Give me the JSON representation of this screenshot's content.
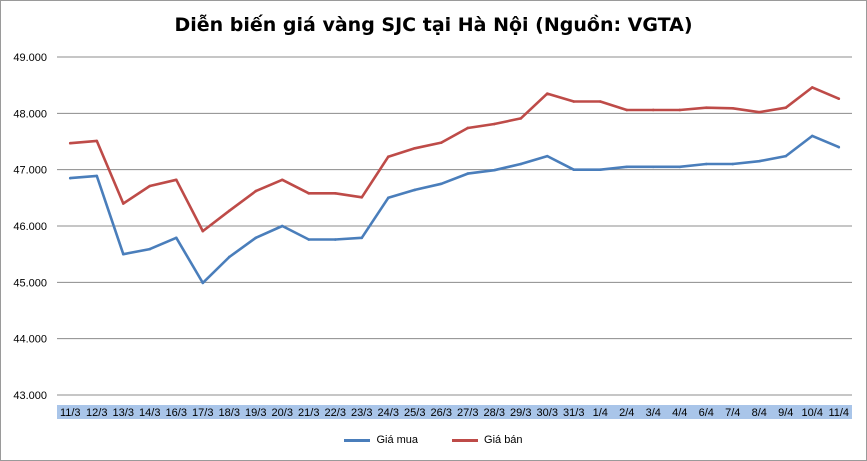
{
  "chart_data": {
    "type": "line",
    "title": "Diễn biến giá vàng SJC tại Hà Nội (Nguồn: VGTA)",
    "xlabel": "",
    "ylabel": "",
    "ylim": [
      43000,
      49000
    ],
    "yticks": [
      "43.000",
      "44.000",
      "45.000",
      "46.000",
      "47.000",
      "48.000",
      "49.000"
    ],
    "ytick_values": [
      43000,
      44000,
      45000,
      46000,
      47000,
      48000,
      49000
    ],
    "grid": true,
    "legend_position": "bottom",
    "categories": [
      "11/3",
      "12/3",
      "13/3",
      "14/3",
      "16/3",
      "17/3",
      "18/3",
      "19/3",
      "20/3",
      "21/3",
      "22/3",
      "23/3",
      "24/3",
      "25/3",
      "26/3",
      "27/3",
      "28/3",
      "29/3",
      "30/3",
      "31/3",
      "1/4",
      "2/4",
      "3/4",
      "4/4",
      "6/4",
      "7/4",
      "8/4",
      "9/4",
      "10/4",
      "11/4"
    ],
    "series": [
      {
        "name": "Giá mua",
        "color": "#4a7ebb",
        "values": [
          46850,
          46890,
          45500,
          45590,
          45790,
          44990,
          45450,
          45790,
          46000,
          45760,
          45760,
          45790,
          46500,
          46640,
          46750,
          46930,
          46990,
          47100,
          47240,
          47000,
          47000,
          47050,
          47050,
          47050,
          47100,
          47100,
          47150,
          47240,
          47600,
          47400
        ]
      },
      {
        "name": "Giá bán",
        "color": "#be4b48",
        "values": [
          47470,
          47510,
          46400,
          46710,
          46820,
          45910,
          46270,
          46620,
          46820,
          46580,
          46580,
          46510,
          47230,
          47380,
          47480,
          47740,
          47810,
          47910,
          48350,
          48210,
          48210,
          48060,
          48060,
          48060,
          48100,
          48090,
          48020,
          48100,
          48460,
          48260
        ]
      }
    ]
  }
}
